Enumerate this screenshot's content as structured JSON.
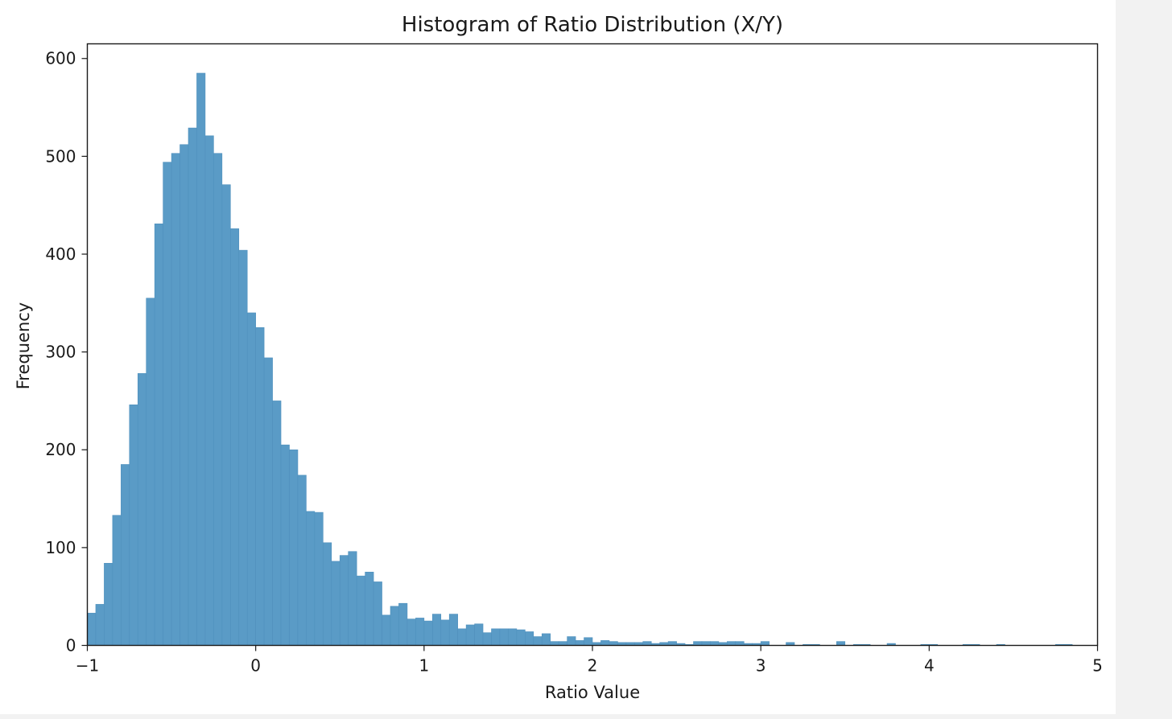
{
  "chart_data": {
    "type": "bar",
    "title": "Histogram of Ratio Distribution (X/Y)",
    "xlabel": "Ratio Value",
    "ylabel": "Frequency",
    "xlim": [
      -1,
      5
    ],
    "ylim": [
      0,
      615
    ],
    "bin_start": -1.0,
    "bin_width": 0.05,
    "values": [
      33,
      42,
      84,
      133,
      185,
      246,
      278,
      355,
      431,
      494,
      503,
      512,
      529,
      585,
      521,
      503,
      471,
      426,
      404,
      340,
      325,
      294,
      250,
      205,
      200,
      174,
      137,
      136,
      105,
      86,
      92,
      96,
      71,
      75,
      65,
      31,
      40,
      43,
      27,
      28,
      25,
      32,
      26,
      32,
      17,
      21,
      22,
      13,
      17,
      17,
      17,
      16,
      14,
      9,
      12,
      4,
      4,
      9,
      5,
      8,
      3,
      5,
      4,
      3,
      3,
      3,
      4,
      2,
      3,
      4,
      2,
      1,
      4,
      4,
      4,
      3,
      4,
      4,
      2,
      2,
      4,
      0,
      0,
      3,
      0,
      1,
      1,
      0,
      0,
      4,
      0,
      1,
      1,
      0,
      0,
      2,
      0,
      0,
      0,
      1,
      1,
      0,
      0,
      0,
      1,
      1,
      0,
      0,
      1,
      0,
      0,
      0,
      0,
      0,
      0,
      1,
      1,
      0,
      0,
      0
    ],
    "bar_color": "#5a9bc6",
    "bar_edge_color": "#4f90bd",
    "xticks": [
      -1,
      0,
      1,
      2,
      3,
      4,
      5
    ],
    "xtick_labels": [
      "−1",
      "0",
      "1",
      "2",
      "3",
      "4",
      "5"
    ],
    "yticks": [
      0,
      100,
      200,
      300,
      400,
      500,
      600
    ],
    "ytick_labels": [
      "0",
      "100",
      "200",
      "300",
      "400",
      "500",
      "600"
    ],
    "grid": false,
    "legend": "none"
  }
}
